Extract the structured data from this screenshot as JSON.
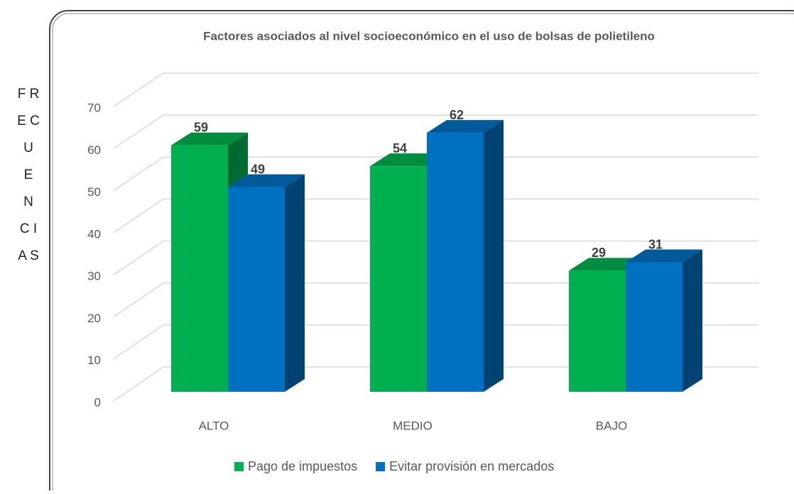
{
  "chart_data": {
    "type": "bar3d",
    "title": "Factores asociados al nivel socioeconómico en el uso de bolsas de polietileno",
    "y_label_lines": [
      "F R",
      "E C",
      "U",
      "E",
      "N",
      "C I",
      "A S"
    ],
    "categories": [
      "ALTO",
      "MEDIO",
      "BAJO"
    ],
    "series": [
      {
        "name": "Pago de impuestos",
        "color": "#00b050",
        "values": [
          59,
          54,
          29
        ]
      },
      {
        "name": "Evitar provisión en mercados",
        "color": "#0070c0",
        "values": [
          49,
          62,
          31
        ]
      }
    ],
    "ylim": [
      0,
      70
    ],
    "yticks": [
      0,
      10,
      20,
      30,
      40,
      50,
      60,
      70
    ],
    "grid": true,
    "legend": "bottom"
  }
}
